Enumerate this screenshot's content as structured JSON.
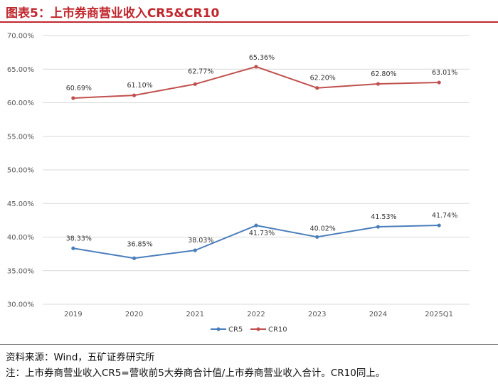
{
  "title": "图表5：上市券商营业收入CR5&CR10",
  "footer": {
    "source": "资料来源：Wind，五矿证券研究所",
    "note": "注：上市券商营业收入CR5=营收前5大券商合计值/上市券商营业收入合计。CR10同上。"
  },
  "chart_data": {
    "type": "line",
    "categories": [
      "2019",
      "2020",
      "2021",
      "2022",
      "2023",
      "2024",
      "2025Q1"
    ],
    "series": [
      {
        "name": "CR5",
        "color": "#4a7ebb",
        "values": [
          38.33,
          36.85,
          38.03,
          41.73,
          40.02,
          41.53,
          41.74
        ],
        "labels": [
          "38.33%",
          "36.85%",
          "38.03%",
          "41.73%",
          "40.02%",
          "41.53%",
          "41.74%"
        ]
      },
      {
        "name": "CR10",
        "color": "#c0504d",
        "values": [
          60.69,
          61.1,
          62.77,
          65.36,
          62.2,
          62.8,
          63.01
        ],
        "labels": [
          "60.69%",
          "61.10%",
          "62.77%",
          "65.36%",
          "62.20%",
          "62.80%",
          "63.01%"
        ]
      }
    ],
    "y_ticks": [
      "30.00%",
      "35.00%",
      "40.00%",
      "45.00%",
      "50.00%",
      "55.00%",
      "60.00%",
      "65.00%",
      "70.00%"
    ],
    "ylim": [
      30,
      70
    ],
    "grid": true,
    "legend": "bottom-center",
    "xlabel": "",
    "ylabel": ""
  }
}
